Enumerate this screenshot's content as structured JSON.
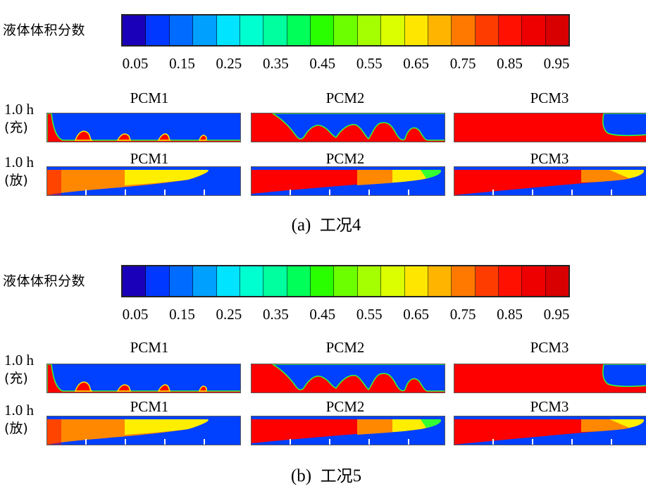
{
  "legend": {
    "title": "液体体积分数",
    "ticks": [
      "0.05",
      "0.15",
      "0.25",
      "0.35",
      "0.45",
      "0.55",
      "0.65",
      "0.75",
      "0.85",
      "0.95"
    ],
    "colors": [
      "#1a00b8",
      "#0038ff",
      "#006cff",
      "#00a0ff",
      "#00e4ff",
      "#00ffd0",
      "#00ff9e",
      "#00ff58",
      "#2aff00",
      "#6cff00",
      "#a6ff00",
      "#dcff00",
      "#ffe600",
      "#ffb400",
      "#ff7800",
      "#ff3c00",
      "#ff1000",
      "#ee0000",
      "#d80000"
    ]
  },
  "columns": [
    "PCM1",
    "PCM2",
    "PCM3"
  ],
  "row_labels": {
    "charge": {
      "line1": "1.0 h",
      "line2": "(充)"
    },
    "discharge": {
      "line1": "1.0 h",
      "line2": "(放)"
    }
  },
  "cases": [
    {
      "id": "a",
      "caption_prefix": "(a)",
      "caption_text": "工况",
      "caption_num": "4"
    },
    {
      "id": "b",
      "caption_prefix": "(b)",
      "caption_text": "工况",
      "caption_num": "5"
    }
  ],
  "colors": {
    "solid": "#0040ff",
    "liquid": "#ff0000",
    "mid_orange": "#ff8800",
    "mid_yellow": "#ffee00",
    "mid_green": "#33ff33"
  }
}
